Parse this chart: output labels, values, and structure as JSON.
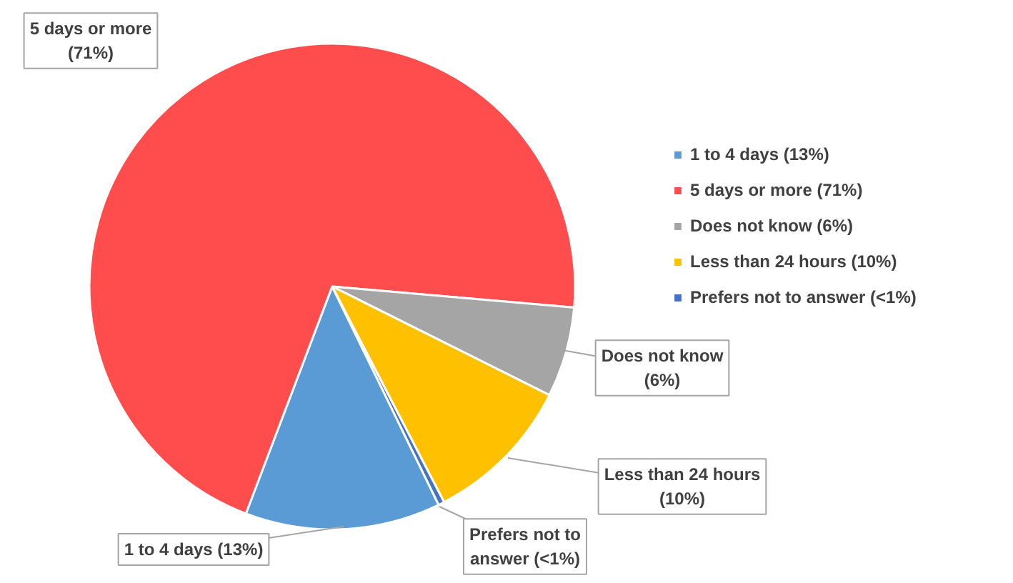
{
  "chart_data": {
    "type": "pie",
    "categories": [
      "1 to 4 days (13%)",
      "5 days or more (71%)",
      "Does not know (6%)",
      "Less than 24 hours (10%)",
      "Prefers not to answer (<1%)"
    ],
    "values": [
      13,
      70.6,
      6,
      10,
      0.4
    ],
    "colors": [
      "#5b9bd5",
      "#ff4d4d",
      "#a5a5a5",
      "#ffc000",
      "#4472c4"
    ],
    "legend": "right"
  }
}
